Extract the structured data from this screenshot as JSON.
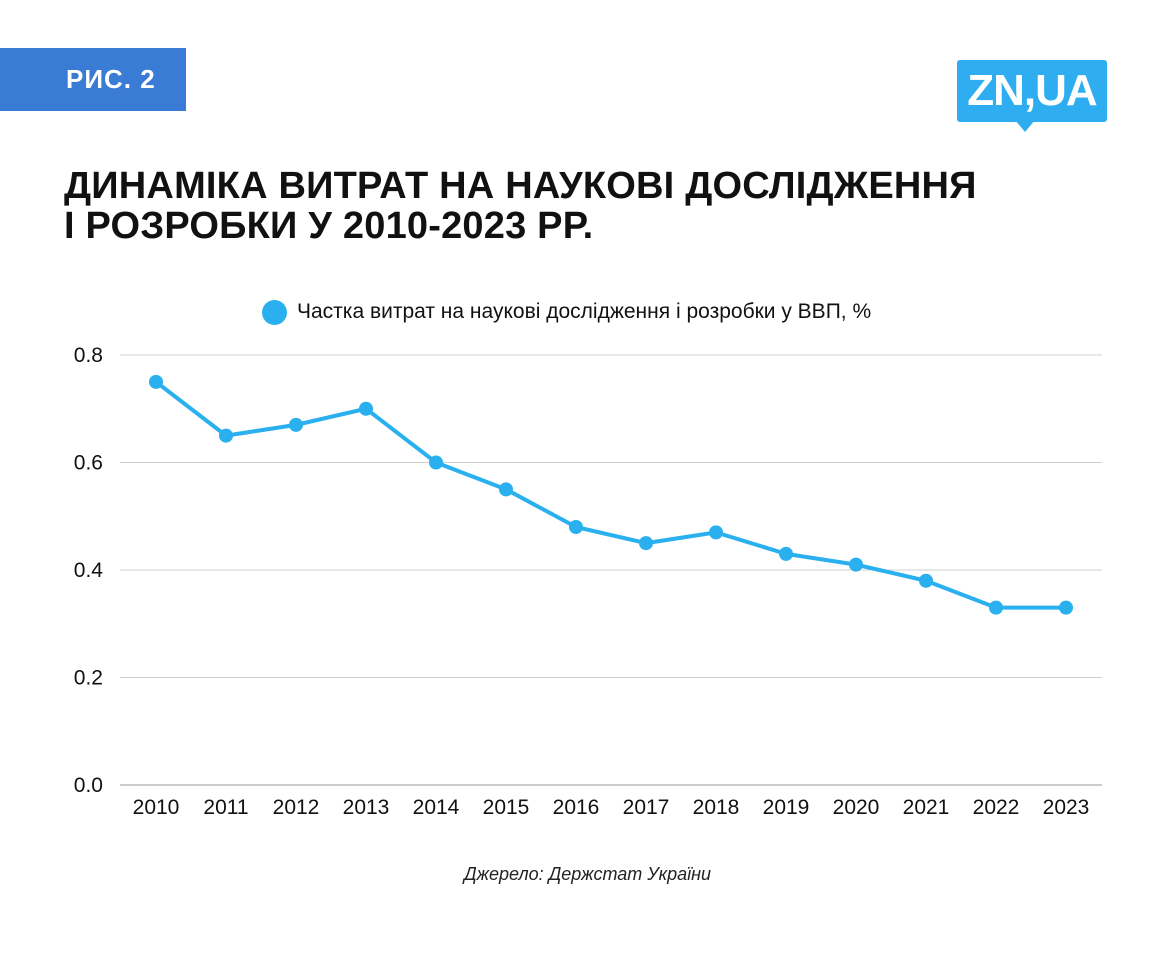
{
  "badge": "РИС. 2",
  "logo": "ZN,UA",
  "title_lines": [
    "ДИНАМІКА ВИТРАТ НА НАУКОВІ ДОСЛІДЖЕННЯ",
    "І РОЗРОБКИ У 2010-2023 РР."
  ],
  "source": "Джерело: Держстат України",
  "colors": {
    "line": "#2ab0ef",
    "badge": "#3a7bd5",
    "logo": "#2eaef0",
    "grid": "#d0d0d0"
  },
  "chart_data": {
    "type": "line",
    "categories": [
      "2010",
      "2011",
      "2012",
      "2013",
      "2014",
      "2015",
      "2016",
      "2017",
      "2018",
      "2019",
      "2020",
      "2021",
      "2022",
      "2023"
    ],
    "series": [
      {
        "name": "Частка витрат на наукові дослідження і розробки у ВВП, %",
        "values": [
          0.75,
          0.65,
          0.67,
          0.7,
          0.6,
          0.55,
          0.48,
          0.45,
          0.47,
          0.43,
          0.41,
          0.38,
          0.33,
          0.33
        ]
      }
    ],
    "ylim": [
      0,
      0.8
    ],
    "yticks": [
      "0.0",
      "0.2",
      "0.4",
      "0.6",
      "0.8"
    ],
    "grid": true,
    "legend": "top-center"
  }
}
